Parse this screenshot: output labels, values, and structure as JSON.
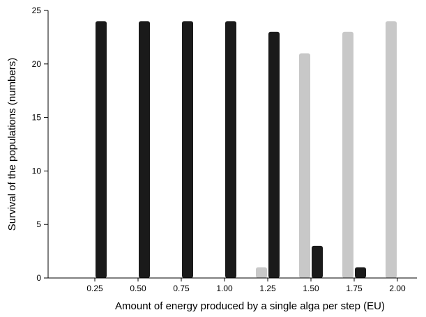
{
  "chart_data": {
    "type": "bar",
    "xlabel": "Amount of energy produced by a single alga per step (EU)",
    "ylabel": "Survival of the populations (numbers)",
    "categories": [
      "0.25",
      "0.50",
      "0.75",
      "1.00",
      "1.25",
      "1.50",
      "1.75",
      "2.00"
    ],
    "ylim": [
      0,
      25
    ],
    "yticks": [
      "0",
      "5",
      "10",
      "15",
      "20",
      "25"
    ],
    "grid": false,
    "series": [
      {
        "color": "#c8c8c8",
        "values": [
          0,
          0,
          0,
          0,
          1,
          21,
          23,
          24
        ]
      },
      {
        "color": "#1a1a1a",
        "values": [
          24,
          24,
          24,
          24,
          23,
          3,
          1,
          0
        ]
      }
    ]
  }
}
